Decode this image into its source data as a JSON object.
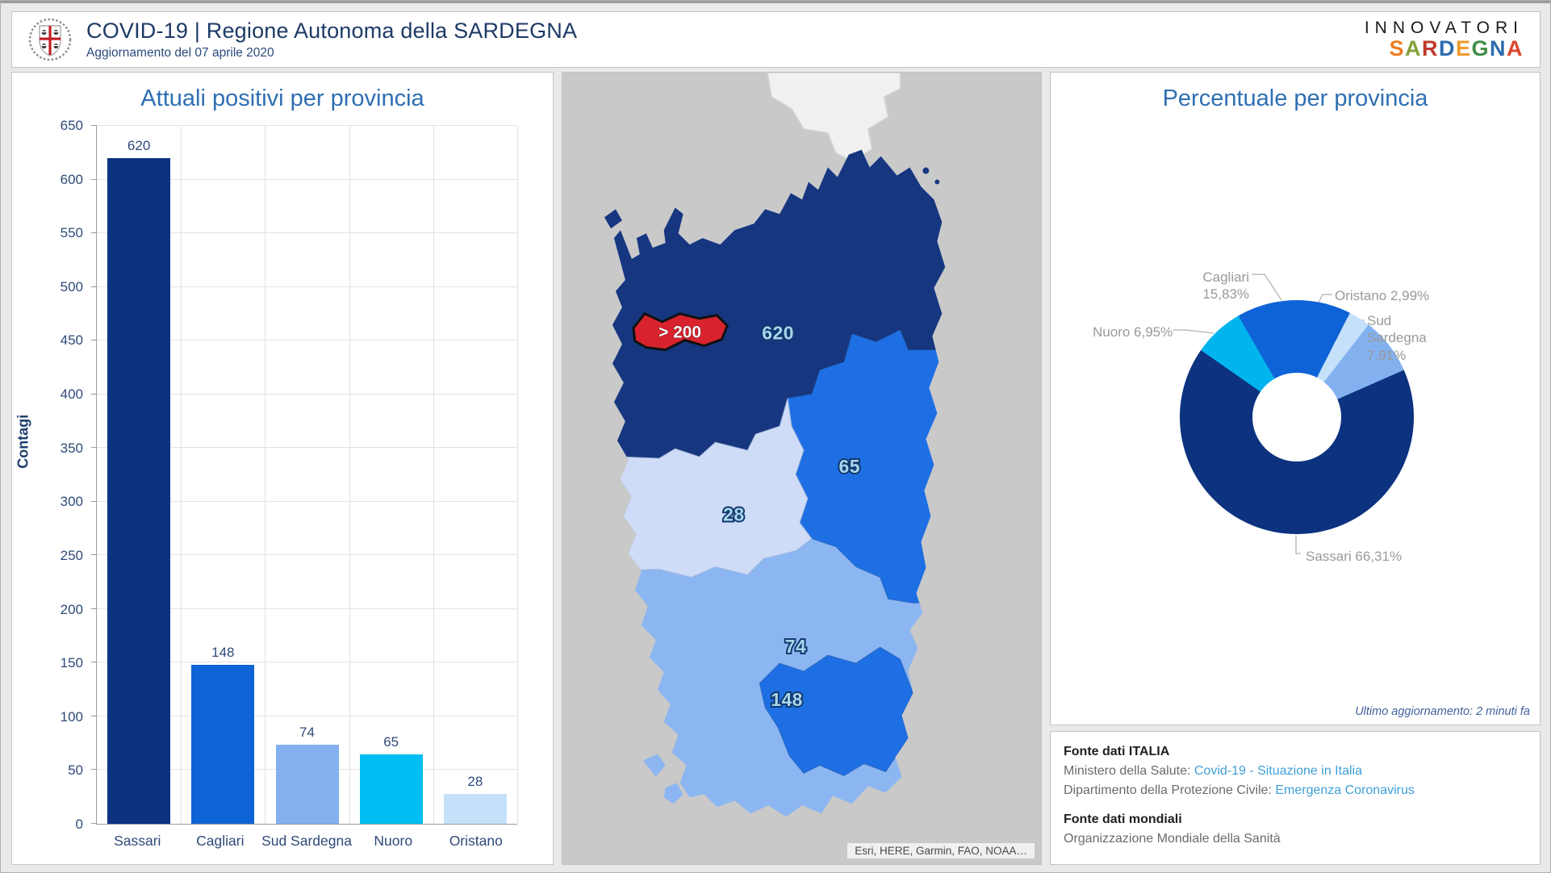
{
  "header": {
    "title": "COVID-19 | Regione Autonoma della SARDEGNA",
    "subtitle": "Aggiornamento del 07 aprile 2020",
    "logo": "sardegna-coat-of-arms",
    "brand_top": "INNOVATORI",
    "brand_bottom": "SARDEGNA",
    "brand_letter_colors": [
      "#ef7d22",
      "#85a23b",
      "#c03a2b",
      "#2d6cb0",
      "#ef9b2d",
      "#3f8c46",
      "#2d6cb0",
      "#d9482e"
    ]
  },
  "chart_data": [
    {
      "type": "bar",
      "title": "Attuali positivi per provincia",
      "xlabel": "",
      "ylabel": "Contagi",
      "categories": [
        "Sassari",
        "Cagliari",
        "Sud Sardegna",
        "Nuoro",
        "Oristano"
      ],
      "values": [
        620,
        148,
        74,
        65,
        28
      ],
      "colors": [
        "#0c3280",
        "#0e63d6",
        "#83b1f0",
        "#00bdf2",
        "#c5e1f9"
      ],
      "ylim": [
        0,
        650
      ],
      "ytick_step": 50,
      "grid": true
    },
    {
      "type": "pie",
      "subtype": "donut",
      "title": "Percentuale per provincia",
      "start_angle": -30,
      "slices": [
        {
          "name": "Cagliari",
          "value": 15.83,
          "label": "15,83%",
          "color": "#0e63d6"
        },
        {
          "name": "Oristano",
          "value": 2.99,
          "label": "2,99%",
          "color": "#c5e1f9"
        },
        {
          "name": "Sud Sardegna",
          "value": 7.91,
          "label": "7,91%",
          "color": "#83b1f0"
        },
        {
          "name": "Sassari",
          "value": 66.31,
          "label": "66,31%",
          "color": "#0c3280"
        },
        {
          "name": "Nuoro",
          "value": 6.95,
          "label": "6,95%",
          "color": "#00b5ee"
        }
      ],
      "legend": "callout-labels"
    }
  ],
  "pie_labels": {
    "cagliari_line1": "Cagliari",
    "cagliari_line2": "15,83%",
    "oristano": "Oristano 2,99%",
    "sud_line1": "Sud",
    "sud_line2": "Sardegna",
    "sud_line3": "7,91%",
    "nuoro": "Nuoro 6,95%",
    "sassari": "Sassari 66,31%"
  },
  "pie_footer": "Ultimo aggiornamento: 2 minuti fa",
  "map": {
    "region_values": {
      "sassari": "620",
      "sassari_hotspot": "> 200",
      "nuoro": "65",
      "oristano": "28",
      "sud_sardegna": "74",
      "cagliari": "148"
    },
    "colors": {
      "sea": "#c9c9c9",
      "corsica": "#f1f1f1",
      "sassari": "#16367f",
      "nuoro": "#1e6fe3",
      "oristano": "#cfdcf8",
      "sud_sardegna": "#8cb6f2",
      "cagliari": "#1e6fe3",
      "hotspot_red": "#d8232e"
    },
    "attribution": "Esri, HERE, Garmin, FAO, NOAA…"
  },
  "sources": {
    "italy_heading": "Fonte dati ITALIA",
    "italy_line1_label": "Ministero della Salute: ",
    "italy_line1_link": "Covid-19 - Situazione in Italia",
    "italy_line2_label": "Dipartimento della Protezione Civile: ",
    "italy_line2_link": "Emergenza Coronavirus",
    "world_heading": "Fonte dati mondiali",
    "world_line": "Organizzazione Mondiale della Sanità"
  }
}
